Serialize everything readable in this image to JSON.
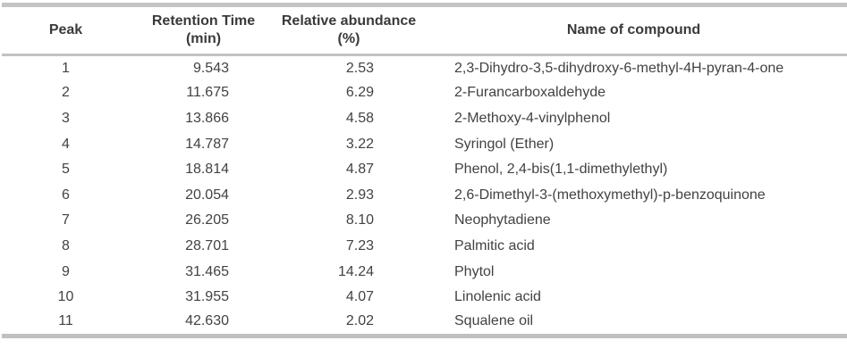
{
  "table": {
    "columns": {
      "peak": {
        "line1": "Peak",
        "line2": ""
      },
      "retention_time": {
        "line1": "Retention Time",
        "line2": "(min)"
      },
      "relative_abundance": {
        "line1": "Relative abundance",
        "line2": "(%)"
      },
      "compound": {
        "line1": "Name of compound",
        "line2": ""
      }
    },
    "rows": [
      {
        "peak": "1",
        "retention_time": "9.543",
        "relative_abundance": "2.53",
        "name": "2,3-Dihydro-3,5-dihydroxy-6-methyl-4H-pyran-4-one"
      },
      {
        "peak": "2",
        "retention_time": "11.675",
        "relative_abundance": "6.29",
        "name": "2-Furancarboxaldehyde"
      },
      {
        "peak": "3",
        "retention_time": "13.866",
        "relative_abundance": "4.58",
        "name": "2-Methoxy-4-vinylphenol"
      },
      {
        "peak": "4",
        "retention_time": "14.787",
        "relative_abundance": "3.22",
        "name": "Syringol (Ether)"
      },
      {
        "peak": "5",
        "retention_time": "18.814",
        "relative_abundance": "4.87",
        "name": "Phenol, 2,4-bis(1,1-dimethylethyl)"
      },
      {
        "peak": "6",
        "retention_time": "20.054",
        "relative_abundance": "2.93",
        "name": "2,6-Dimethyl-3-(methoxymethyl)-p-benzoquinone"
      },
      {
        "peak": "7",
        "retention_time": "26.205",
        "relative_abundance": "8.10",
        "name": "Neophytadiene"
      },
      {
        "peak": "8",
        "retention_time": "28.701",
        "relative_abundance": "7.23",
        "name": "Palmitic acid"
      },
      {
        "peak": "9",
        "retention_time": "31.465",
        "relative_abundance": "14.24",
        "name": "Phytol"
      },
      {
        "peak": "10",
        "retention_time": "31.955",
        "relative_abundance": "4.07",
        "name": "Linolenic acid"
      },
      {
        "peak": "11",
        "retention_time": "42.630",
        "relative_abundance": "2.02",
        "name": "Squalene oil"
      }
    ],
    "text_color": "#424242",
    "rule_color": "#c2c2c2"
  }
}
